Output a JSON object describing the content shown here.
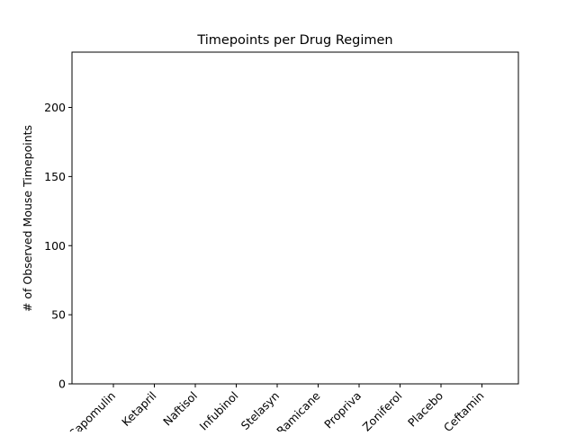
{
  "chart_data": {
    "type": "bar",
    "title": "Timepoints per Drug Regimen",
    "xlabel": "",
    "ylabel": "# of Observed Mouse Timepoints",
    "categories": [
      "Capomulin",
      "Ketapril",
      "Naftisol",
      "Infubinol",
      "Stelasyn",
      "Ramicane",
      "Propriva",
      "Zoniferol",
      "Placebo",
      "Ceftamin"
    ],
    "values": [
      0,
      0,
      0,
      0,
      0,
      0,
      0,
      0,
      0,
      0
    ],
    "yticks": [
      0,
      50,
      100,
      150,
      200
    ],
    "ylim": [
      0,
      240
    ],
    "grid": false,
    "legend": false,
    "bar_color": "#1f77b4"
  }
}
